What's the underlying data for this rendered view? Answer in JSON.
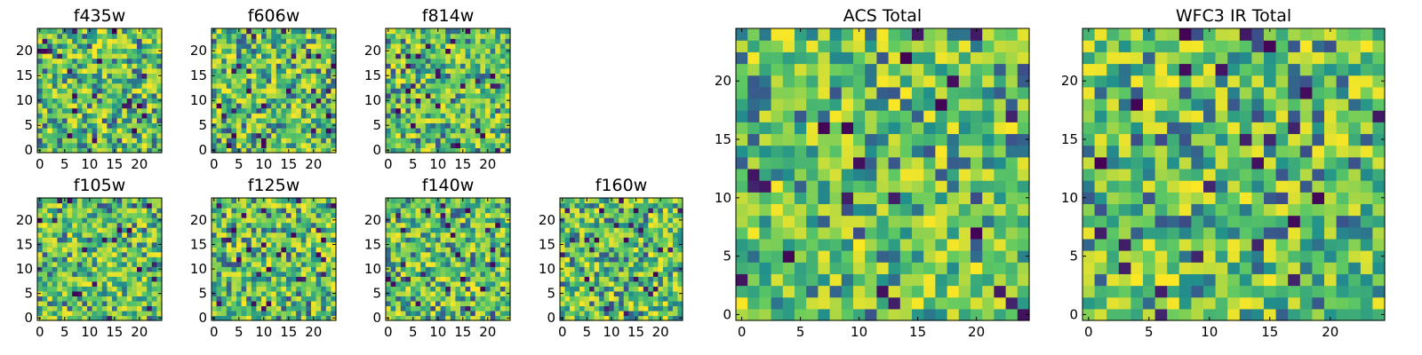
{
  "chart_data": [
    {
      "type": "heatmap",
      "title": "f435w",
      "grid_size": 25,
      "seed": 11,
      "xticks": [
        0,
        5,
        10,
        15,
        20
      ],
      "yticks": [
        0,
        5,
        10,
        15,
        20
      ],
      "xlim": [
        0,
        25
      ],
      "ylim": [
        0,
        25
      ]
    },
    {
      "type": "heatmap",
      "title": "f606w",
      "grid_size": 25,
      "seed": 23,
      "xticks": [
        0,
        5,
        10,
        15,
        20
      ],
      "yticks": [
        0,
        5,
        10,
        15,
        20
      ],
      "xlim": [
        0,
        25
      ],
      "ylim": [
        0,
        25
      ]
    },
    {
      "type": "heatmap",
      "title": "f814w",
      "grid_size": 25,
      "seed": 37,
      "xticks": [
        0,
        5,
        10,
        15,
        20
      ],
      "yticks": [
        0,
        5,
        10,
        15,
        20
      ],
      "xlim": [
        0,
        25
      ],
      "ylim": [
        0,
        25
      ]
    },
    {
      "type": "heatmap",
      "title": "f105w",
      "grid_size": 25,
      "seed": 41,
      "xticks": [
        0,
        5,
        10,
        15,
        20
      ],
      "yticks": [
        0,
        5,
        10,
        15,
        20
      ],
      "xlim": [
        0,
        25
      ],
      "ylim": [
        0,
        25
      ]
    },
    {
      "type": "heatmap",
      "title": "f125w",
      "grid_size": 25,
      "seed": 53,
      "xticks": [
        0,
        5,
        10,
        15,
        20
      ],
      "yticks": [
        0,
        5,
        10,
        15,
        20
      ],
      "xlim": [
        0,
        25
      ],
      "ylim": [
        0,
        25
      ]
    },
    {
      "type": "heatmap",
      "title": "f140w",
      "grid_size": 25,
      "seed": 67,
      "xticks": [
        0,
        5,
        10,
        15,
        20
      ],
      "yticks": [
        0,
        5,
        10,
        15,
        20
      ],
      "xlim": [
        0,
        25
      ],
      "ylim": [
        0,
        25
      ]
    },
    {
      "type": "heatmap",
      "title": "f160w",
      "grid_size": 25,
      "seed": 79,
      "xticks": [
        0,
        5,
        10,
        15,
        20
      ],
      "yticks": [
        0,
        5,
        10,
        15,
        20
      ],
      "xlim": [
        0,
        25
      ],
      "ylim": [
        0,
        25
      ]
    },
    {
      "type": "heatmap",
      "title": "ACS Total",
      "grid_size": 25,
      "seed": 83,
      "xticks": [
        0,
        5,
        10,
        15,
        20
      ],
      "yticks": [
        0,
        5,
        10,
        15,
        20
      ],
      "xlim": [
        0,
        25
      ],
      "ylim": [
        0,
        25
      ]
    },
    {
      "type": "heatmap",
      "title": "WFC3 IR Total",
      "grid_size": 25,
      "seed": 97,
      "xticks": [
        0,
        5,
        10,
        15,
        20
      ],
      "yticks": [
        0,
        5,
        10,
        15,
        20
      ],
      "xlim": [
        0,
        25
      ],
      "ylim": [
        0,
        25
      ]
    }
  ],
  "colormap": {
    "name": "viridis",
    "stops": [
      "#440154",
      "#3b528b",
      "#21918c",
      "#5ec962",
      "#fde725"
    ]
  }
}
